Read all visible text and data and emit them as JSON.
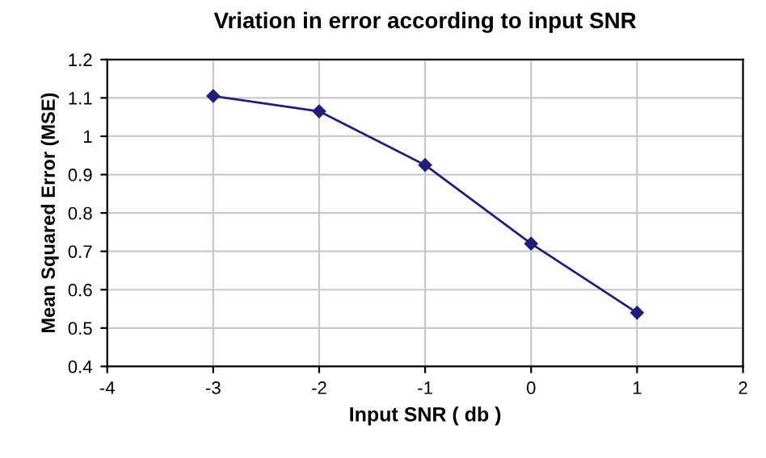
{
  "chart_data": {
    "type": "line",
    "title": "Vriation in error according to input SNR",
    "xlabel": "Input SNR ( db )",
    "ylabel": "Mean Squared Error (MSE)",
    "x": [
      -3,
      -2,
      -1,
      0,
      1
    ],
    "series": [
      {
        "color": "#1f1f7a",
        "values": [
          1.105,
          1.065,
          0.925,
          0.72,
          0.54
        ]
      }
    ],
    "xlim": [
      -4,
      2
    ],
    "xticks": [
      -4,
      -3,
      -2,
      -1,
      0,
      1,
      2
    ],
    "ylim": [
      0.4,
      1.2
    ],
    "yticks": [
      0.4,
      0.5,
      0.6,
      0.7,
      0.8,
      0.9,
      1,
      1.1,
      1.2
    ],
    "grid": true,
    "marker": "diamond",
    "line_style": "solid",
    "legend": false
  }
}
